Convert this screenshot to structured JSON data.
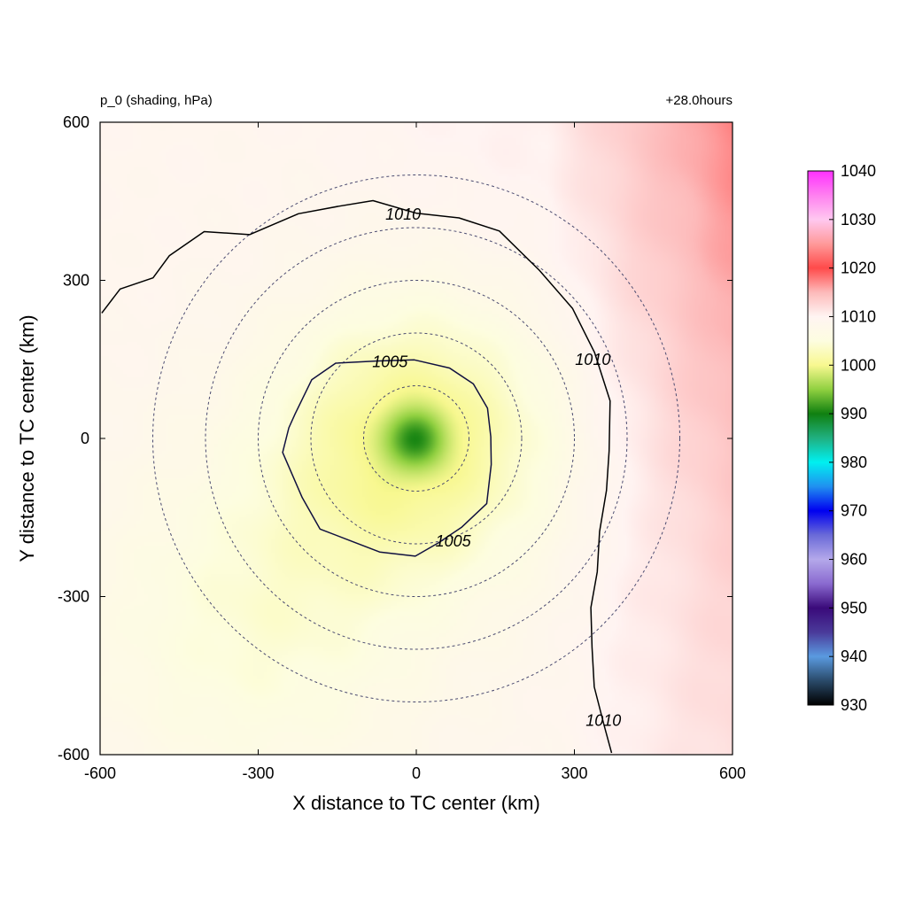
{
  "chart_data": {
    "type": "heatmap",
    "title_left": "p_0 (shading, hPa)",
    "title_right": "+28.0hours",
    "xlabel": "X distance to TC center (km)",
    "ylabel": "Y distance to TC center (km)",
    "xlim": [
      -600,
      600
    ],
    "ylim": [
      -600,
      600
    ],
    "x_ticks": [
      -600,
      -300,
      0,
      300,
      600
    ],
    "y_ticks": [
      -600,
      -300,
      0,
      300,
      600
    ],
    "x_tick_labels": [
      "-600",
      "-300",
      "0",
      "300",
      "600"
    ],
    "y_tick_labels": [
      "-600",
      "-300",
      "0",
      "300",
      "600"
    ],
    "field": {
      "variable": "p_0",
      "units": "hPa",
      "center_min": 991,
      "background": 1009,
      "east_max": 1015,
      "southwest_value": 1003
    },
    "range_rings_km": [
      100,
      200,
      300,
      400,
      500
    ],
    "contours": [
      {
        "level": 1005,
        "label": "1005",
        "label_positions": [
          [
            -50,
            145
          ],
          [
            70,
            -195
          ]
        ],
        "points": [
          [
            -230,
            50
          ],
          [
            -200,
            110
          ],
          [
            -150,
            140
          ],
          [
            -80,
            150
          ],
          [
            0,
            150
          ],
          [
            60,
            130
          ],
          [
            110,
            105
          ],
          [
            135,
            60
          ],
          [
            140,
            0
          ],
          [
            145,
            -50
          ],
          [
            130,
            -120
          ],
          [
            90,
            -170
          ],
          [
            40,
            -200
          ],
          [
            0,
            -220
          ],
          [
            -70,
            -215
          ],
          [
            -120,
            -200
          ],
          [
            -180,
            -170
          ],
          [
            -220,
            -110
          ],
          [
            -250,
            -30
          ],
          [
            -245,
            20
          ]
        ]
      },
      {
        "level": 1010,
        "label": "1010",
        "label_positions": [
          [
            -25,
            425
          ],
          [
            335,
            150
          ],
          [
            355,
            -535
          ]
        ],
        "points": [
          [
            -600,
            240
          ],
          [
            -560,
            280
          ],
          [
            -500,
            305
          ],
          [
            -470,
            350
          ],
          [
            -400,
            390
          ],
          [
            -320,
            385
          ],
          [
            -220,
            430
          ],
          [
            -150,
            440
          ],
          [
            -80,
            448
          ],
          [
            0,
            430
          ],
          [
            80,
            420
          ],
          [
            160,
            390
          ],
          [
            230,
            320
          ],
          [
            300,
            250
          ],
          [
            335,
            160
          ],
          [
            370,
            70
          ],
          [
            365,
            -20
          ],
          [
            360,
            -100
          ],
          [
            350,
            -180
          ],
          [
            340,
            -250
          ],
          [
            335,
            -320
          ],
          [
            330,
            -400
          ],
          [
            340,
            -470
          ],
          [
            355,
            -540
          ],
          [
            370,
            -600
          ]
        ]
      }
    ],
    "colorbar": {
      "min": 930,
      "max": 1040,
      "tick_labels": [
        "930",
        "940",
        "950",
        "960",
        "970",
        "980",
        "990",
        "1000",
        "1010",
        "1020",
        "1030",
        "1040"
      ],
      "stops": [
        {
          "value": 930,
          "color": "#000000"
        },
        {
          "value": 935,
          "color": "#2a4a6a"
        },
        {
          "value": 940,
          "color": "#5a9ae0"
        },
        {
          "value": 945,
          "color": "#4a3a9a"
        },
        {
          "value": 950,
          "color": "#3a0a7a"
        },
        {
          "value": 955,
          "color": "#8a6ad0"
        },
        {
          "value": 960,
          "color": "#b4a8ea"
        },
        {
          "value": 965,
          "color": "#6a6ad8"
        },
        {
          "value": 970,
          "color": "#0000f0"
        },
        {
          "value": 975,
          "color": "#2090f0"
        },
        {
          "value": 980,
          "color": "#00f0f0"
        },
        {
          "value": 985,
          "color": "#20b080"
        },
        {
          "value": 990,
          "color": "#108010"
        },
        {
          "value": 995,
          "color": "#90d040"
        },
        {
          "value": 1000,
          "color": "#f8f890"
        },
        {
          "value": 1005,
          "color": "#fdfde0"
        },
        {
          "value": 1010,
          "color": "#fff4f2"
        },
        {
          "value": 1015,
          "color": "#fdbaba"
        },
        {
          "value": 1020,
          "color": "#ff4a4a"
        },
        {
          "value": 1025,
          "color": "#ff9a9a"
        },
        {
          "value": 1030,
          "color": "#ffc8f0"
        },
        {
          "value": 1035,
          "color": "#ff80f0"
        },
        {
          "value": 1040,
          "color": "#ff30ff"
        }
      ]
    }
  }
}
